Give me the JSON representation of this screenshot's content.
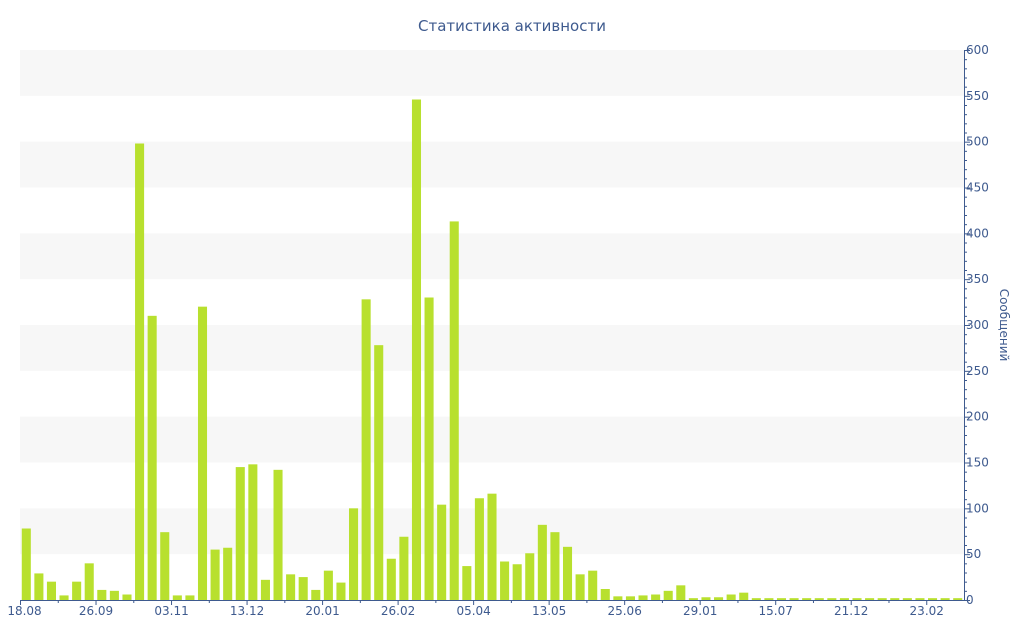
{
  "chart_data": {
    "type": "bar",
    "title": "Статистика активности",
    "ylabel": "Сообщений",
    "ylim": [
      0,
      600
    ],
    "yticks": [
      0,
      50,
      100,
      150,
      200,
      250,
      300,
      350,
      400,
      450,
      500,
      550,
      600
    ],
    "y_axis_side": "right",
    "xtick_labels": [
      "18.08",
      "26.09",
      "03.11",
      "13.12",
      "20.01",
      "26.02",
      "05.04",
      "13.05",
      "25.06",
      "29.01",
      "15.07",
      "21.12",
      "23.02"
    ],
    "xtick_bar_index": [
      0,
      6,
      12,
      18,
      24,
      30,
      36,
      42,
      48,
      54,
      60,
      66,
      72
    ],
    "bar_color": "#b8e02e",
    "band_color": "#f7f7f7",
    "axis_color": "#3e5a8e",
    "values": [
      78,
      29,
      20,
      5,
      20,
      40,
      11,
      10,
      6,
      498,
      310,
      74,
      5,
      5,
      320,
      55,
      57,
      145,
      148,
      22,
      142,
      28,
      25,
      11,
      32,
      19,
      100,
      328,
      278,
      45,
      69,
      546,
      330,
      104,
      413,
      37,
      111,
      116,
      42,
      39,
      51,
      82,
      74,
      58,
      28,
      32,
      12,
      4,
      4,
      5,
      6,
      10,
      16,
      2,
      3,
      3,
      6,
      8,
      2,
      2,
      2,
      2,
      2,
      2,
      2,
      2,
      2,
      2,
      2,
      2,
      2,
      2,
      2,
      2,
      2
    ]
  }
}
